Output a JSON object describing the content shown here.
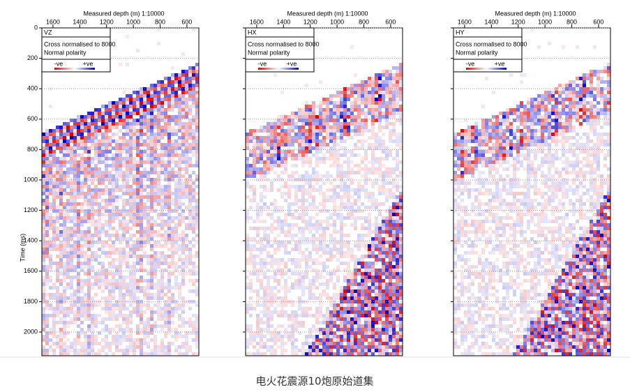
{
  "caption": "电火花震源10炮原始道集",
  "chart_data": [
    {
      "type": "seismic",
      "title": "Measured depth (m)  1:10000",
      "component": "VZ",
      "normalisation": "Cross normalised to 8000",
      "polarity": "Normal polarity",
      "legend_labels": [
        "-ve",
        "+ve"
      ],
      "colors": {
        "negative": "#e00000",
        "positive": "#0000d0"
      },
      "xlim": [
        1683,
        511
      ],
      "xticks": [
        1600,
        1400,
        1200,
        1000,
        800,
        600
      ],
      "ylim": [
        0,
        2156
      ],
      "yticks": [
        0,
        200,
        400,
        600,
        800,
        1000,
        1200,
        1400,
        1600,
        1800,
        2000
      ],
      "ylabel": "Time (ms)",
      "ytick_labels": true,
      "grid": true
    },
    {
      "type": "seismic",
      "title": "Measured depth (m)  1:10000",
      "component": "HX",
      "normalisation": "Cross normalised to 8000",
      "polarity": "Normal polarity",
      "legend_labels": [
        "-ve",
        "+ve"
      ],
      "colors": {
        "negative": "#e00000",
        "positive": "#0000d0"
      },
      "xlim": [
        1683,
        511
      ],
      "xticks": [
        1600,
        1400,
        1200,
        1000,
        800,
        600
      ],
      "ylim": [
        0,
        2156
      ],
      "yticks": [
        0,
        200,
        400,
        600,
        800,
        1000,
        1200,
        1400,
        1600,
        1800,
        2000
      ],
      "ytick_labels": false,
      "grid": true
    },
    {
      "type": "seismic",
      "title": "Measured depth (m)  1:10000",
      "component": "HY",
      "normalisation": "Cross normalised to 8000",
      "polarity": "Normal polarity",
      "legend_labels": [
        "-ve",
        "+ve"
      ],
      "colors": {
        "negative": "#e00000",
        "positive": "#0000d0"
      },
      "xlim": [
        1683,
        511
      ],
      "xticks": [
        1600,
        1400,
        1200,
        1000,
        800,
        600
      ],
      "ylim": [
        0,
        2156
      ],
      "yticks": [
        0,
        200,
        400,
        600,
        800,
        1000,
        1200,
        1400,
        1600,
        1800,
        2000
      ],
      "ytick_labels": false,
      "grid": true
    }
  ]
}
